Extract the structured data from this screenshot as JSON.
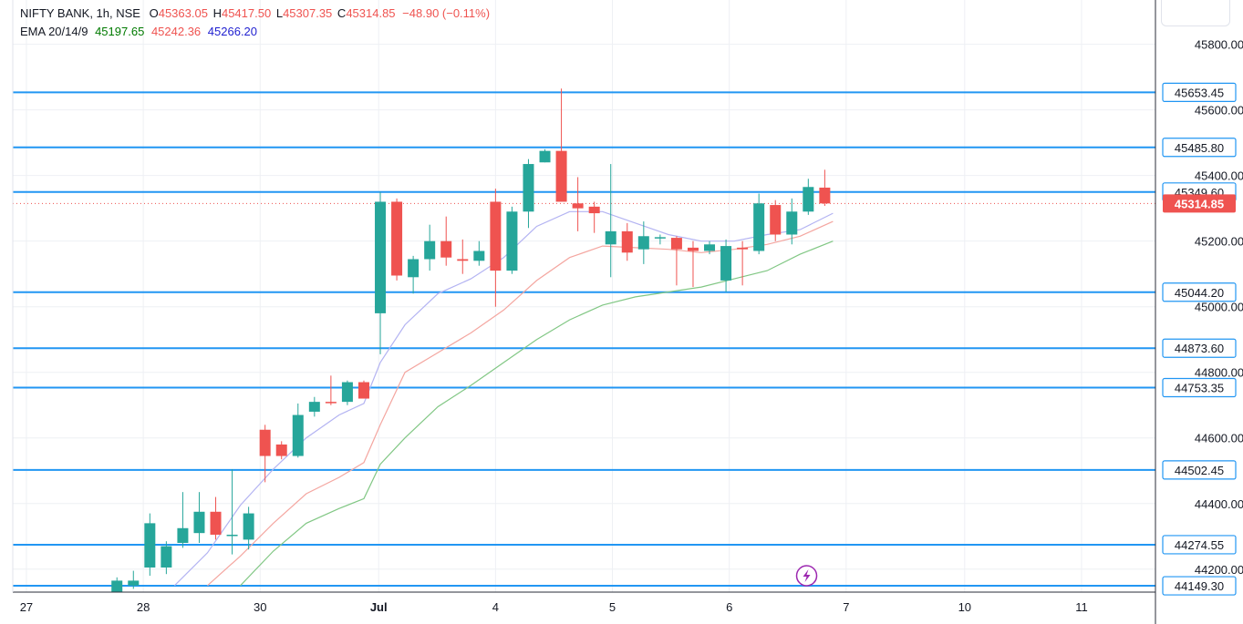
{
  "header": {
    "symbol": "NIFTY BANK, 1h, NSE",
    "open_label": "O",
    "open": "45363.05",
    "high_label": "H",
    "high": "45417.50",
    "low_label": "L",
    "low": "45307.35",
    "close_label": "C",
    "close": "45314.85",
    "change": "−48.90 (−0.11%)",
    "ema_label": "EMA 20/14/9",
    "ema1": "45197.65",
    "ema2": "45242.36",
    "ema3": "45266.20"
  },
  "colors": {
    "up": "#26a69a",
    "down": "#ef5350",
    "level": "#2196f3",
    "ema20": "#81c784",
    "ema14": "#f4a6a0",
    "ema9": "#b3b3f2",
    "grid": "#eef0f4",
    "axis_text": "#131722",
    "lightning": "#9c27b0"
  },
  "chart_data": {
    "type": "candlestick",
    "title": "NIFTY BANK, 1h, NSE",
    "ylim": [
      44130,
      45935
    ],
    "y_ticks": [
      "44200.00",
      "44400.00",
      "44600.00",
      "44800.00",
      "45000.00",
      "45200.00",
      "45400.00",
      "45600.00",
      "45800.00"
    ],
    "x_labels": [
      {
        "label": "27",
        "x": -1.0
      },
      {
        "label": "28",
        "x": 6.1
      },
      {
        "label": "30",
        "x": 13.2
      },
      {
        "label": "Jul",
        "x": 20.4,
        "bold": true
      },
      {
        "label": "4",
        "x": 27.5
      },
      {
        "label": "5",
        "x": 34.6
      },
      {
        "label": "6",
        "x": 41.7
      },
      {
        "label": "7",
        "x": 48.8
      },
      {
        "label": "10",
        "x": 56.0
      },
      {
        "label": "11",
        "x": 63.1
      }
    ],
    "levels": [
      45653.45,
      45485.8,
      45349.6,
      45044.2,
      44873.6,
      44753.35,
      44502.45,
      44274.55,
      44149.3
    ],
    "level_labels": [
      "45653.45",
      "45485.80",
      "45349.60",
      "45044.20",
      "44873.60",
      "44753.35",
      "44502.45",
      "44274.55",
      "44149.30"
    ],
    "last_price": 45314.85,
    "last_price_label": "45314.85",
    "candles": [
      {
        "i": 4.5,
        "o": 44095,
        "h": 44175,
        "l": 44060,
        "c": 44165
      },
      {
        "i": 5.5,
        "o": 44150,
        "h": 44195,
        "l": 44140,
        "c": 44165
      },
      {
        "i": 6.5,
        "o": 44205,
        "h": 44370,
        "l": 44180,
        "c": 44340
      },
      {
        "i": 7.5,
        "o": 44205,
        "h": 44285,
        "l": 44185,
        "c": 44270
      },
      {
        "i": 8.5,
        "o": 44280,
        "h": 44435,
        "l": 44265,
        "c": 44325
      },
      {
        "i": 9.5,
        "o": 44310,
        "h": 44435,
        "l": 44280,
        "c": 44375
      },
      {
        "i": 10.5,
        "o": 44375,
        "h": 44420,
        "l": 44290,
        "c": 44305
      },
      {
        "i": 11.5,
        "o": 44305,
        "h": 44505,
        "l": 44245,
        "c": 44305
      },
      {
        "i": 12.5,
        "o": 44290,
        "h": 44390,
        "l": 44260,
        "c": 44370
      },
      {
        "i": 13.5,
        "o": 44625,
        "h": 44640,
        "l": 44465,
        "c": 44545
      },
      {
        "i": 14.5,
        "o": 44580,
        "h": 44590,
        "l": 44535,
        "c": 44545
      },
      {
        "i": 15.5,
        "o": 44545,
        "h": 44705,
        "l": 44540,
        "c": 44670
      },
      {
        "i": 16.5,
        "o": 44680,
        "h": 44725,
        "l": 44665,
        "c": 44710
      },
      {
        "i": 17.5,
        "o": 44710,
        "h": 44790,
        "l": 44700,
        "c": 44708
      },
      {
        "i": 18.5,
        "o": 44710,
        "h": 44775,
        "l": 44700,
        "c": 44770
      },
      {
        "i": 19.5,
        "o": 44770,
        "h": 44775,
        "l": 44720,
        "c": 44720
      },
      {
        "i": 20.5,
        "o": 44980,
        "h": 45350,
        "l": 44855,
        "c": 45320
      },
      {
        "i": 21.5,
        "o": 45320,
        "h": 45330,
        "l": 45080,
        "c": 45095
      },
      {
        "i": 22.5,
        "o": 45090,
        "h": 45155,
        "l": 45040,
        "c": 45145
      },
      {
        "i": 23.5,
        "o": 45145,
        "h": 45250,
        "l": 45110,
        "c": 45200
      },
      {
        "i": 24.5,
        "o": 45200,
        "h": 45275,
        "l": 45125,
        "c": 45150
      },
      {
        "i": 25.5,
        "o": 45145,
        "h": 45205,
        "l": 45100,
        "c": 45140
      },
      {
        "i": 26.5,
        "o": 45140,
        "h": 45200,
        "l": 45125,
        "c": 45170
      },
      {
        "i": 27.5,
        "o": 45320,
        "h": 45360,
        "l": 45000,
        "c": 45110
      },
      {
        "i": 28.5,
        "o": 45110,
        "h": 45305,
        "l": 45100,
        "c": 45290
      },
      {
        "i": 29.5,
        "o": 45290,
        "h": 45450,
        "l": 45240,
        "c": 45435
      },
      {
        "i": 30.5,
        "o": 45440,
        "h": 45480,
        "l": 45440,
        "c": 45475
      },
      {
        "i": 31.5,
        "o": 45475,
        "h": 45665,
        "l": 45320,
        "c": 45320
      },
      {
        "i": 32.5,
        "o": 45315,
        "h": 45395,
        "l": 45230,
        "c": 45300
      },
      {
        "i": 33.5,
        "o": 45305,
        "h": 45320,
        "l": 45225,
        "c": 45285
      },
      {
        "i": 34.5,
        "o": 45190,
        "h": 45435,
        "l": 45090,
        "c": 45230
      },
      {
        "i": 35.5,
        "o": 45230,
        "h": 45255,
        "l": 45140,
        "c": 45165
      },
      {
        "i": 36.5,
        "o": 45175,
        "h": 45260,
        "l": 45130,
        "c": 45215
      },
      {
        "i": 37.5,
        "o": 45210,
        "h": 45220,
        "l": 45190,
        "c": 45212
      },
      {
        "i": 38.5,
        "o": 45210,
        "h": 45215,
        "l": 45065,
        "c": 45175
      },
      {
        "i": 39.5,
        "o": 45180,
        "h": 45200,
        "l": 45060,
        "c": 45170
      },
      {
        "i": 40.5,
        "o": 45170,
        "h": 45200,
        "l": 45160,
        "c": 45190
      },
      {
        "i": 41.5,
        "o": 45080,
        "h": 45205,
        "l": 45045,
        "c": 45185
      },
      {
        "i": 42.5,
        "o": 45180,
        "h": 45200,
        "l": 45065,
        "c": 45175
      },
      {
        "i": 43.5,
        "o": 45170,
        "h": 45345,
        "l": 45160,
        "c": 45315
      },
      {
        "i": 44.5,
        "o": 45310,
        "h": 45325,
        "l": 45200,
        "c": 45220
      },
      {
        "i": 45.5,
        "o": 45220,
        "h": 45330,
        "l": 45190,
        "c": 45290
      },
      {
        "i": 46.5,
        "o": 45290,
        "h": 45390,
        "l": 45280,
        "c": 45365
      },
      {
        "i": 47.5,
        "o": 45363.05,
        "h": 45417.5,
        "l": 45307.35,
        "c": 45314.85
      }
    ],
    "ema_series": [
      {
        "name": "EMA 20",
        "color_key": "ema20",
        "points": [
          [
            12.0,
            44150
          ],
          [
            14.0,
            44255
          ],
          [
            16.0,
            44340
          ],
          [
            18.0,
            44385
          ],
          [
            19.5,
            44415
          ],
          [
            20.5,
            44520
          ],
          [
            22.0,
            44600
          ],
          [
            24.0,
            44695
          ],
          [
            26.0,
            44760
          ],
          [
            28.0,
            44830
          ],
          [
            30.0,
            44900
          ],
          [
            32.0,
            44960
          ],
          [
            34.0,
            45005
          ],
          [
            36.0,
            45030
          ],
          [
            38.0,
            45045
          ],
          [
            40.0,
            45060
          ],
          [
            42.0,
            45085
          ],
          [
            44.0,
            45110
          ],
          [
            46.0,
            45160
          ],
          [
            48.0,
            45200
          ]
        ]
      },
      {
        "name": "EMA 14",
        "color_key": "ema14",
        "points": [
          [
            10.0,
            44150
          ],
          [
            12.0,
            44240
          ],
          [
            14.0,
            44340
          ],
          [
            16.0,
            44430
          ],
          [
            18.0,
            44480
          ],
          [
            19.5,
            44525
          ],
          [
            20.5,
            44640
          ],
          [
            22.0,
            44800
          ],
          [
            24.0,
            44860
          ],
          [
            26.0,
            44920
          ],
          [
            28.0,
            44990
          ],
          [
            30.0,
            45080
          ],
          [
            32.0,
            45150
          ],
          [
            34.0,
            45185
          ],
          [
            36.0,
            45180
          ],
          [
            38.0,
            45175
          ],
          [
            40.0,
            45165
          ],
          [
            42.0,
            45175
          ],
          [
            44.0,
            45190
          ],
          [
            46.0,
            45215
          ],
          [
            48.0,
            45260
          ]
        ]
      },
      {
        "name": "EMA 9",
        "color_key": "ema9",
        "points": [
          [
            8.0,
            44150
          ],
          [
            10.0,
            44250
          ],
          [
            12.0,
            44395
          ],
          [
            14.0,
            44505
          ],
          [
            16.0,
            44600
          ],
          [
            18.0,
            44670
          ],
          [
            19.5,
            44705
          ],
          [
            20.5,
            44830
          ],
          [
            22.0,
            44945
          ],
          [
            24.0,
            45040
          ],
          [
            26.0,
            45085
          ],
          [
            28.0,
            45150
          ],
          [
            30.0,
            45245
          ],
          [
            32.0,
            45290
          ],
          [
            34.0,
            45290
          ],
          [
            36.0,
            45255
          ],
          [
            38.0,
            45220
          ],
          [
            40.0,
            45200
          ],
          [
            42.0,
            45200
          ],
          [
            44.0,
            45220
          ],
          [
            46.0,
            45235
          ],
          [
            48.0,
            45285
          ]
        ]
      }
    ]
  }
}
